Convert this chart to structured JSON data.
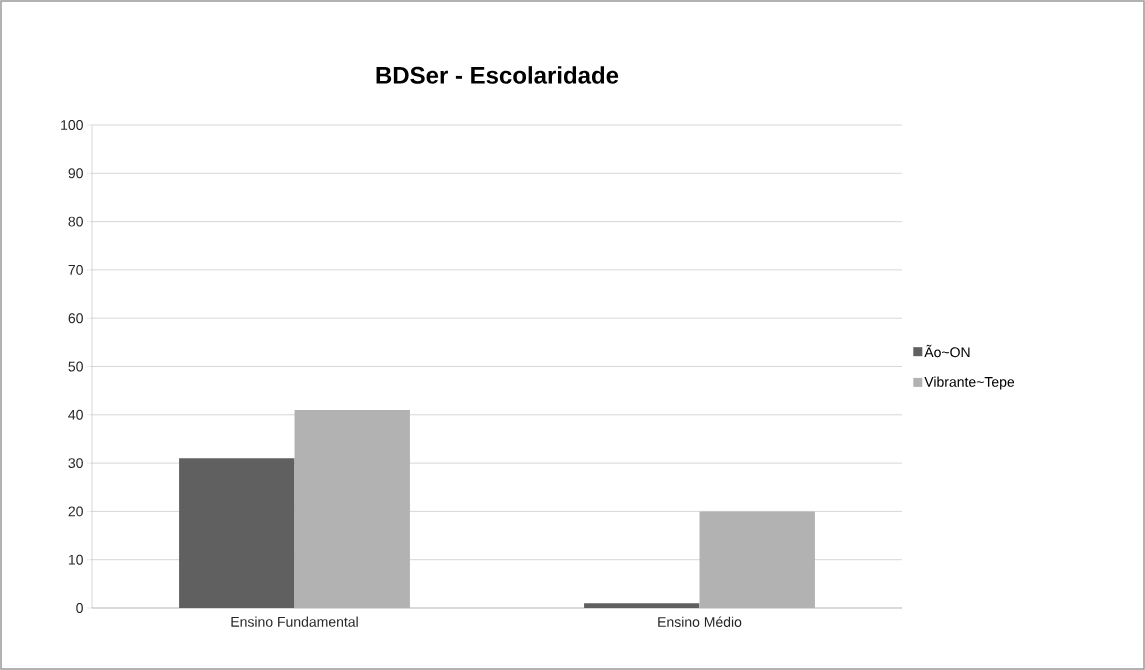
{
  "chart_data": {
    "type": "bar",
    "title": "BDSer - Escolaridade",
    "categories": [
      "Ensino Fundamental",
      "Ensino Médio"
    ],
    "series": [
      {
        "name": "Ão~ON",
        "color": "#606060",
        "values": [
          31,
          1
        ]
      },
      {
        "name": "Vibrante~Tepe",
        "color": "#b2b2b2",
        "values": [
          41,
          20
        ]
      }
    ],
    "ylim": [
      0,
      100
    ],
    "yticks": [
      0,
      10,
      20,
      30,
      40,
      50,
      60,
      70,
      80,
      90,
      100
    ],
    "grid": "y",
    "legend": "right"
  }
}
